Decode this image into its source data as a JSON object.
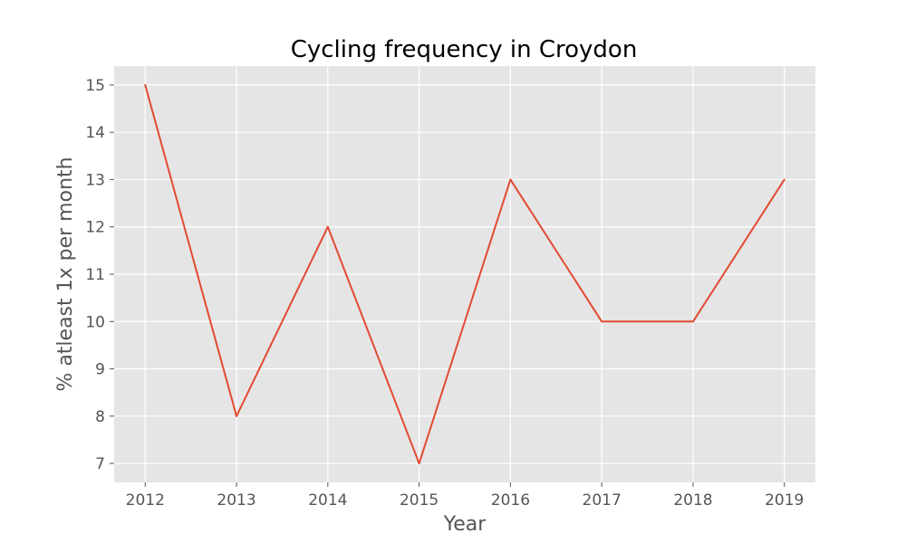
{
  "chart_data": {
    "type": "line",
    "title": "Cycling frequency in Croydon",
    "xlabel": "Year",
    "ylabel": "% atleast 1x per month",
    "x": [
      2012,
      2013,
      2014,
      2015,
      2016,
      2017,
      2018,
      2019
    ],
    "series": [
      {
        "values": [
          15,
          8,
          12,
          7,
          13,
          10,
          10,
          13
        ]
      }
    ],
    "xlim": [
      2011.66,
      2019.34
    ],
    "ylim": [
      6.6,
      15.4
    ],
    "xticks": [
      2012,
      2013,
      2014,
      2015,
      2016,
      2017,
      2018,
      2019
    ],
    "yticks": [
      7,
      8,
      9,
      10,
      11,
      12,
      13,
      14,
      15
    ],
    "grid": true,
    "legend": "none",
    "colors": {
      "line": "#E24A33",
      "plot_background": "#E5E5E5",
      "grid": "#FFFFFF",
      "tick_text": "#555555"
    }
  }
}
